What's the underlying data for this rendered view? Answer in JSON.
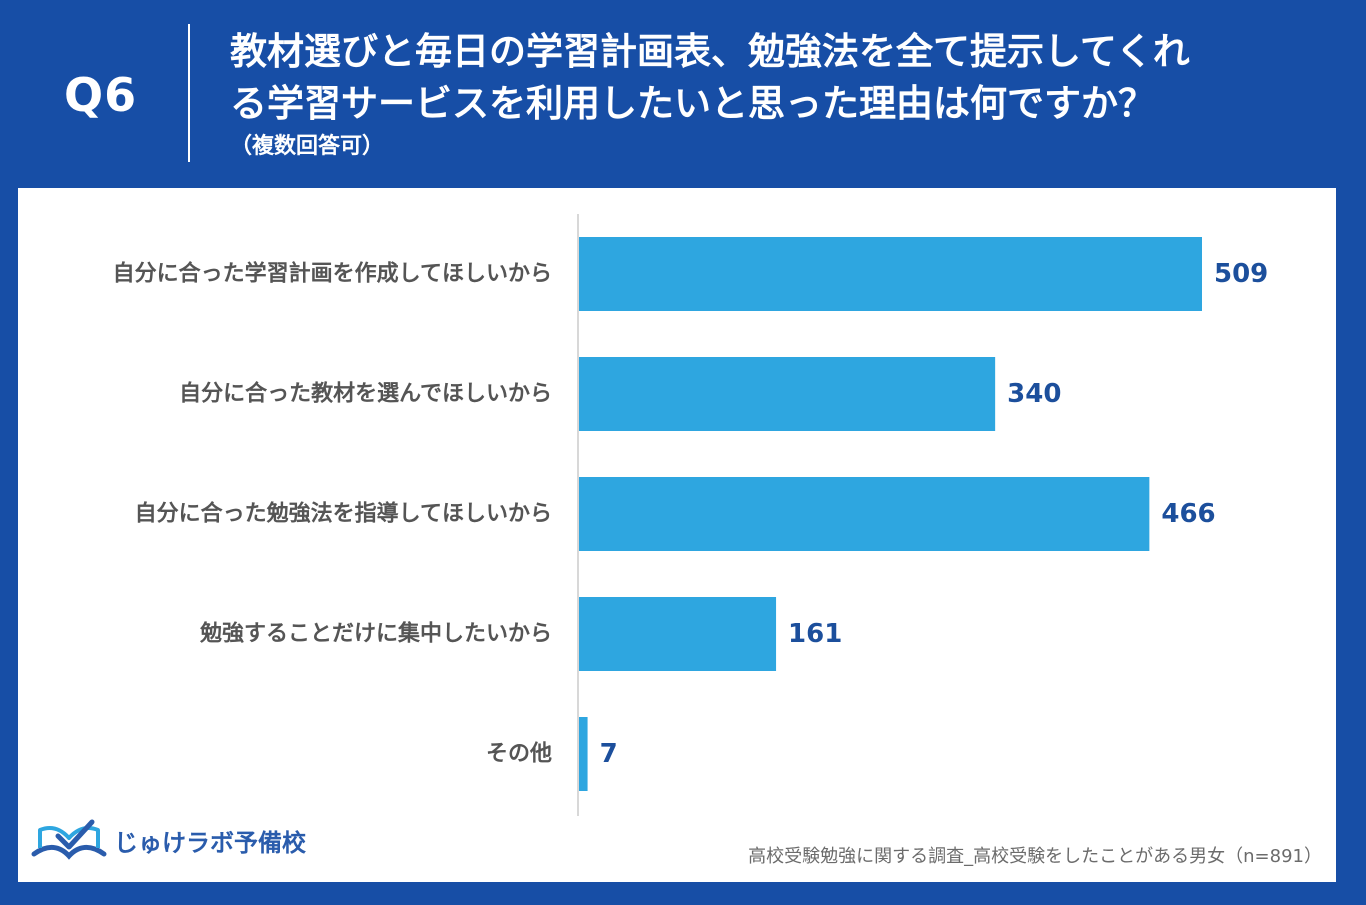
{
  "header": {
    "question_number": "Q6",
    "title": "教材選びと毎日の学習計画表、勉強法を全て提示してくれ\nる学習サービスを利用したいと思った理由は何ですか？",
    "note": "（複数回答可）"
  },
  "footer": {
    "logo_text": "じゅけラボ予備校",
    "source": "高校受験勉強に関する調査_高校受験をしたことがある男女（n=891）"
  },
  "colors": {
    "background": "#174ea6",
    "bar": "#2ea6e0",
    "value_label": "#1c4f9c",
    "category_label": "#555555"
  },
  "chart_data": {
    "type": "bar",
    "orientation": "horizontal",
    "categories": [
      "自分に合った学習計画を作成してほしいから",
      "自分に合った教材を選んでほしいから",
      "自分に合った勉強法を指導してほしいから",
      "勉強することだけに集中したいから",
      "その他"
    ],
    "values": [
      509,
      340,
      466,
      161,
      7
    ],
    "title": "",
    "xlabel": "",
    "ylabel": "",
    "xlim": [
      0,
      509
    ],
    "grid": false,
    "legend": "none"
  }
}
